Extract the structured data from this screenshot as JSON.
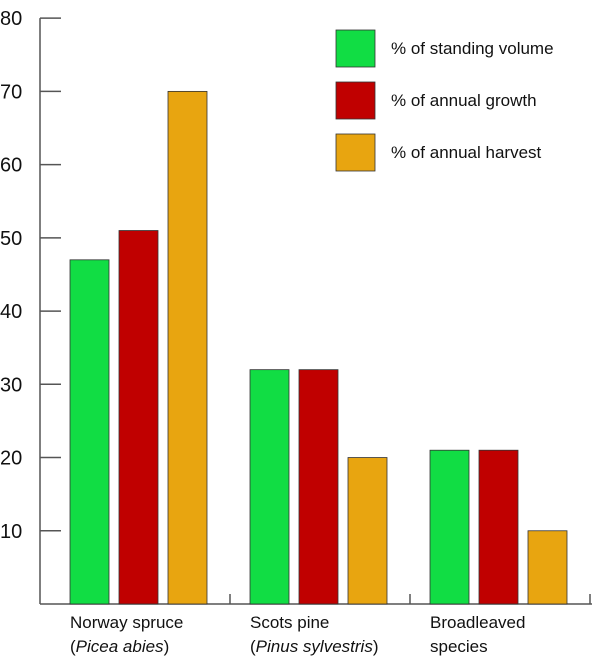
{
  "chart_data": {
    "type": "bar",
    "title": "",
    "xlabel": "",
    "ylabel": "",
    "ylim": [
      0,
      80
    ],
    "yticks": [
      10,
      20,
      30,
      40,
      50,
      60,
      70,
      80
    ],
    "grid": false,
    "legend_position": "top-right",
    "categories": [
      {
        "line1": "Norway spruce",
        "line2_open": "(",
        "line2_italic": "Picea abies",
        "line2_close": ")"
      },
      {
        "line1": "Scots pine",
        "line2_open": "(",
        "line2_italic": "Pinus sylvestris",
        "line2_close": ")"
      },
      {
        "line1": "Broadleaved",
        "line2_open": "",
        "line2_italic": "",
        "line2_close": "species"
      }
    ],
    "series": [
      {
        "name": "% of standing volume",
        "color": "#11dd44",
        "values": [
          47,
          32,
          21
        ]
      },
      {
        "name": "% of annual growth",
        "color": "#c00000",
        "values": [
          51,
          32,
          21
        ]
      },
      {
        "name": "% of annual harvest",
        "color": "#e8a510",
        "values": [
          70,
          20,
          10
        ]
      }
    ],
    "colors": {
      "axis": "#555555",
      "bar_edge": "#333333"
    }
  }
}
